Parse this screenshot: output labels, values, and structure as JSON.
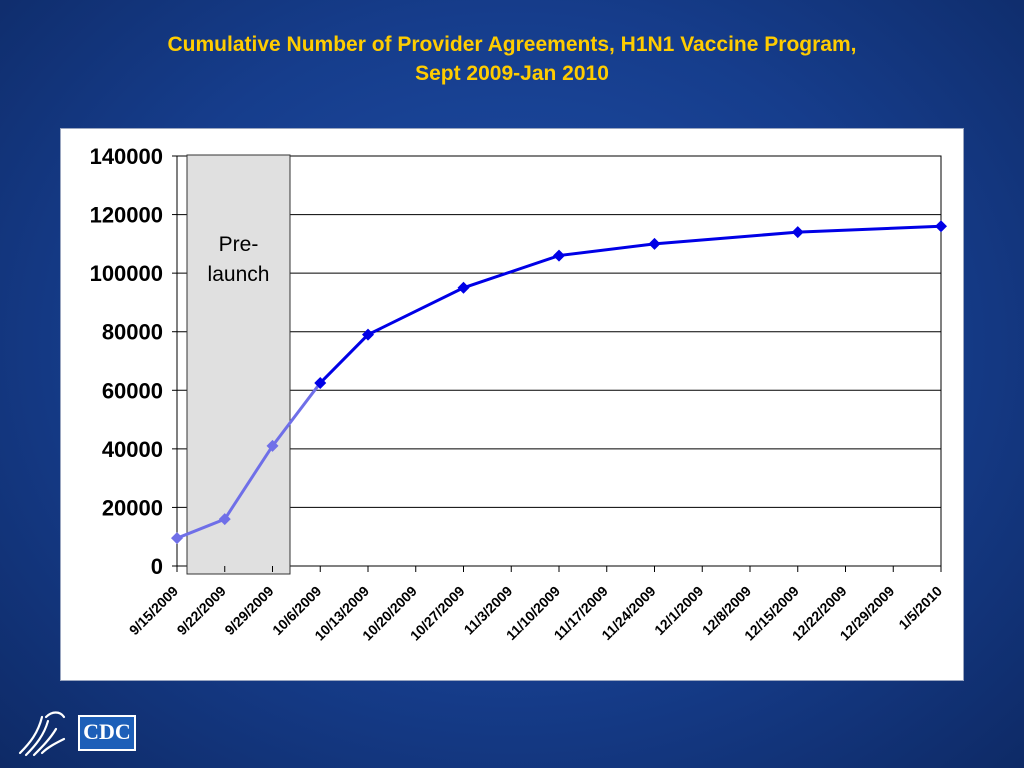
{
  "title": {
    "line1": "Cumulative Number of Provider Agreements, H1N1 Vaccine Program,",
    "line2": "Sept 2009-Jan 2010"
  },
  "chart_data": {
    "type": "line",
    "title": "Cumulative Number of Provider Agreements, H1N1 Vaccine Program, Sept 2009-Jan 2010",
    "xlabel": "",
    "ylabel": "",
    "categories": [
      "9/15/2009",
      "9/22/2009",
      "9/29/2009",
      "10/6/2009",
      "10/13/2009",
      "10/20/2009",
      "10/27/2009",
      "11/3/2009",
      "11/10/2009",
      "11/17/2009",
      "11/24/2009",
      "12/1/2009",
      "12/8/2009",
      "12/15/2009",
      "12/22/2009",
      "12/29/2009",
      "1/5/2010"
    ],
    "series": [
      {
        "points": [
          {
            "x": "9/15/2009",
            "y": 9500
          },
          {
            "x": "9/22/2009",
            "y": 16000
          },
          {
            "x": "9/29/2009",
            "y": 41000
          },
          {
            "x": "10/6/2009",
            "y": 62500
          },
          {
            "x": "10/13/2009",
            "y": 79000
          },
          {
            "x": "10/27/2009",
            "y": 95000
          },
          {
            "x": "11/10/2009",
            "y": 106000
          },
          {
            "x": "11/24/2009",
            "y": 110000
          },
          {
            "x": "12/15/2009",
            "y": 114000
          },
          {
            "x": "1/5/2010",
            "y": 116000
          }
        ],
        "color": "#0000e6",
        "prelaunch_color": "#6f6fe8"
      }
    ],
    "ylim": [
      0,
      140000
    ],
    "yticks": [
      "0",
      "20000",
      "40000",
      "60000",
      "80000",
      "100000",
      "120000",
      "140000"
    ],
    "grid": true,
    "legend": "none",
    "annotations": [
      {
        "text_line1": "Pre-",
        "text_line2": "launch",
        "x_start": "9/15/2009",
        "x_end": "10/6/2009",
        "fill": "#e0e0e0"
      }
    ]
  },
  "logo": {
    "cdc_text": "CDC"
  }
}
